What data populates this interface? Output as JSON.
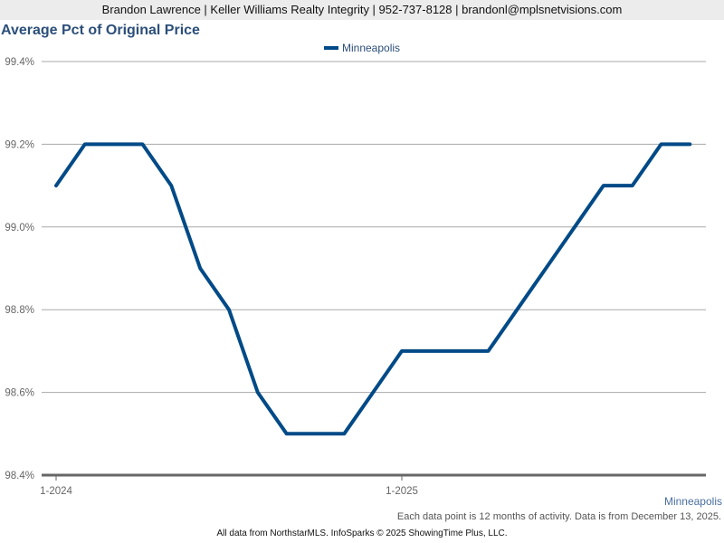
{
  "header": {
    "contact": "Brandon Lawrence | Keller Williams Realty Integrity | 952-737-8128 | brandonl@mplsnetvisions.com"
  },
  "region_label": "Minneapolis",
  "note": "Each data point is 12 months of activity. Data is from December 13, 2025.",
  "footer": "All data from NorthstarMLS. InfoSparks © 2025 ShowingTime Plus, LLC.",
  "chart_data": {
    "type": "line",
    "title": "Average Pct of Original Price",
    "xlabel": "",
    "ylabel": "",
    "ylim": [
      98.4,
      99.4
    ],
    "yticks": [
      "99.4%",
      "99.2%",
      "99.0%",
      "98.8%",
      "98.6%",
      "98.4%"
    ],
    "xticks": [
      "1-2024",
      "1-2025"
    ],
    "grid": true,
    "legend_position": "top-center",
    "line_color": "#004a87",
    "x": [
      "1-2024",
      "2-2024",
      "3-2024",
      "4-2024",
      "5-2024",
      "6-2024",
      "7-2024",
      "8-2024",
      "9-2024",
      "10-2024",
      "11-2024",
      "12-2024",
      "1-2025",
      "2-2025",
      "3-2025",
      "4-2025",
      "5-2025",
      "6-2025",
      "7-2025",
      "8-2025",
      "9-2025",
      "10-2025",
      "11-2025"
    ],
    "series": [
      {
        "name": "Minneapolis",
        "values": [
          99.1,
          99.2,
          99.2,
          99.2,
          99.1,
          98.9,
          98.8,
          98.6,
          98.5,
          98.5,
          98.5,
          98.6,
          98.7,
          98.7,
          98.7,
          98.7,
          98.8,
          98.9,
          99.0,
          99.1,
          99.1,
          99.2,
          99.2
        ]
      }
    ]
  }
}
